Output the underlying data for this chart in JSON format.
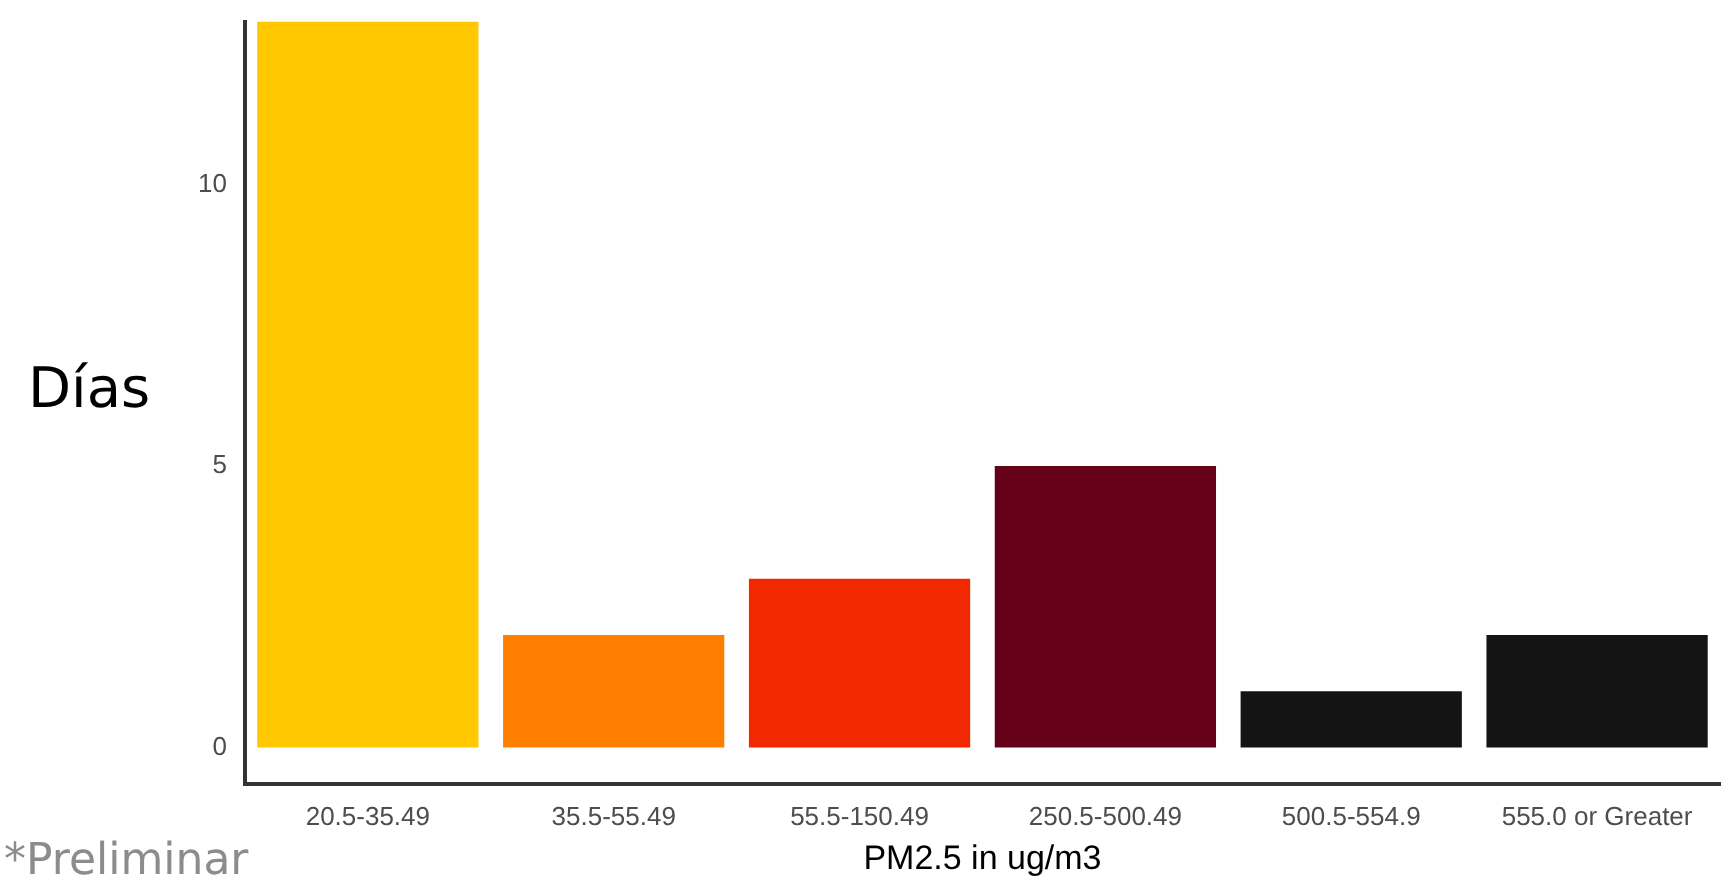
{
  "chart_data": {
    "type": "bar",
    "ylabel": "Días",
    "xlabel": "PM2.5 in ug/m3",
    "categories": [
      "20.5-35.49",
      "35.5-55.49",
      "55.5-150.49",
      "250.5-500.49",
      "500.5-554.9",
      "555.0 or Greater"
    ],
    "values": [
      12.9,
      2,
      3,
      5,
      1,
      2
    ],
    "colors": [
      "#ffc800",
      "#ff8000",
      "#f22800",
      "#650019",
      "#141414",
      "#141414"
    ],
    "ylim": [
      -0.65,
      12.9
    ],
    "yticks": [
      0,
      5,
      10
    ],
    "grid": false,
    "legend": false,
    "annotations": [
      "*Preliminar"
    ]
  }
}
